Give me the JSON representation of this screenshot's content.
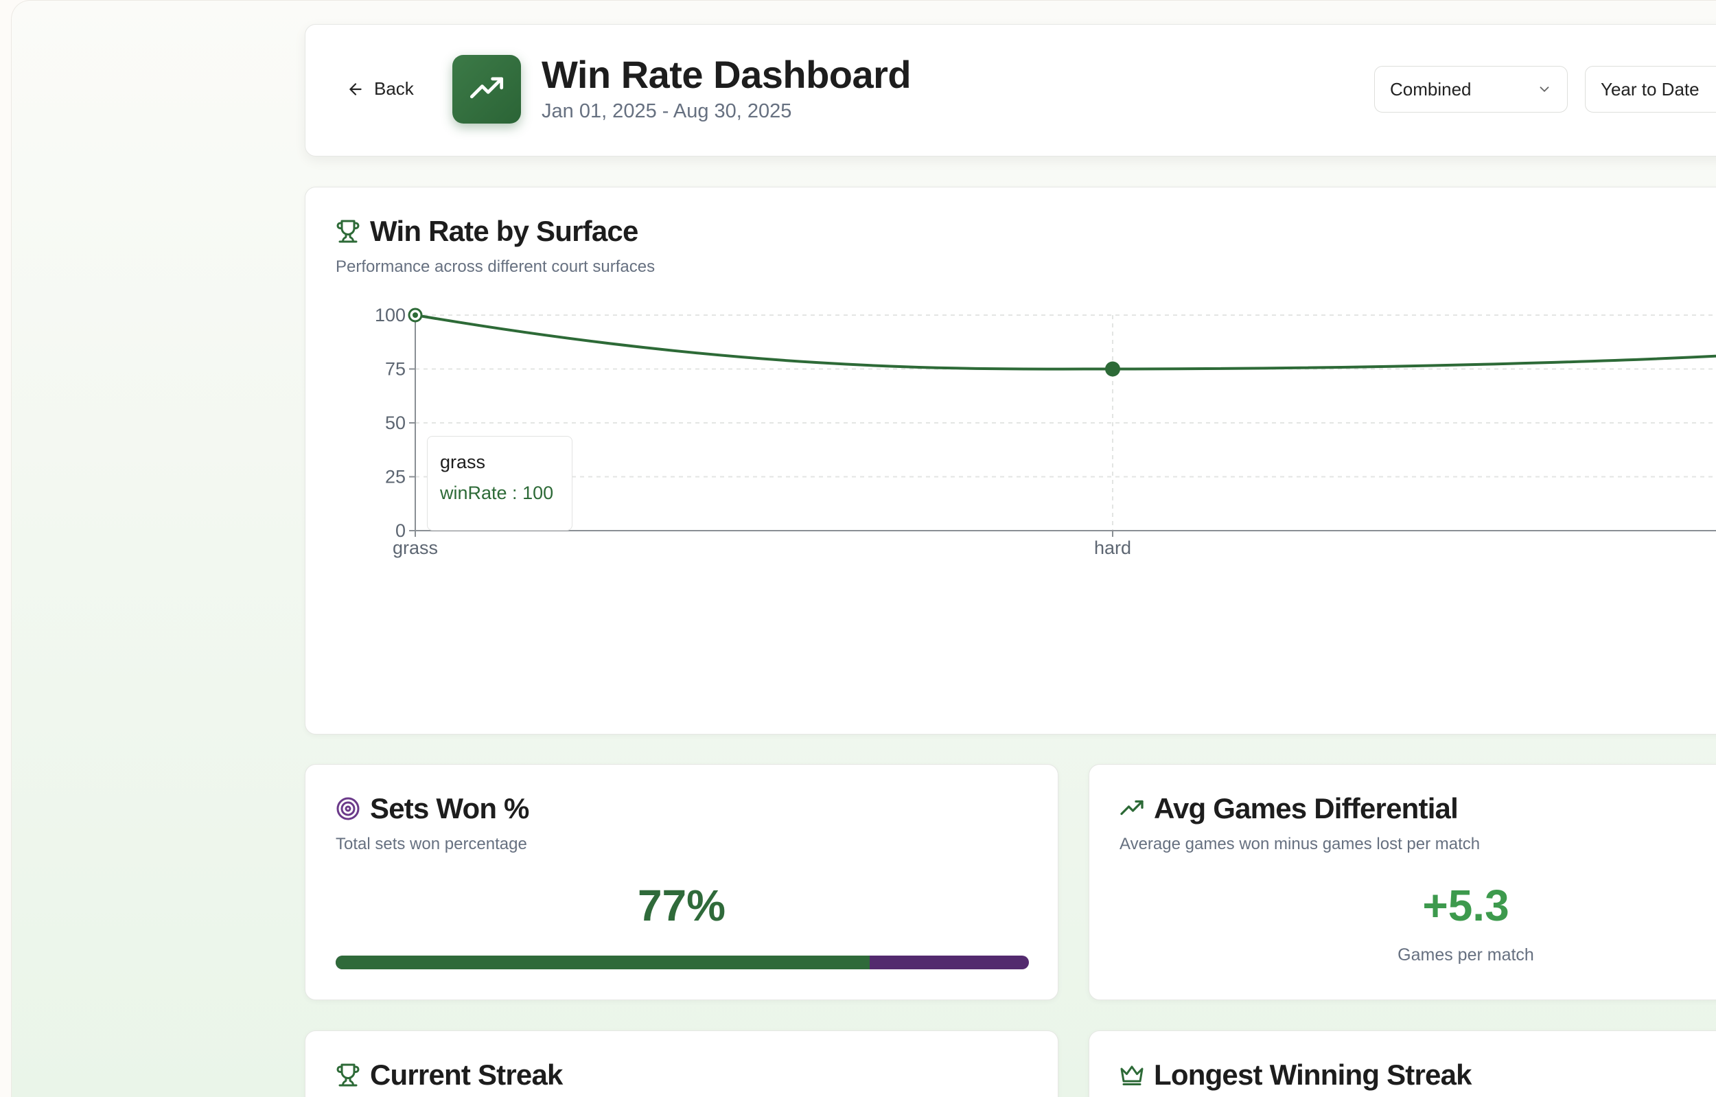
{
  "header": {
    "back_label": "Back",
    "title": "Win Rate Dashboard",
    "date_range": "Jan 01, 2025 - Aug 30, 2025",
    "filter_mode": "Combined",
    "period": "Year to Date"
  },
  "surface_chart": {
    "title": "Win Rate by Surface",
    "subtitle": "Performance across different court surfaces",
    "tooltip": {
      "label": "grass",
      "series": "winRate",
      "separator": " : ",
      "value": "100"
    }
  },
  "chart_data": {
    "type": "line",
    "categories": [
      "grass",
      "hard"
    ],
    "series": [
      {
        "values": [
          100,
          75
        ]
      }
    ],
    "continues_right": true,
    "ylim": [
      0,
      100
    ],
    "yticks": [
      "0",
      "25",
      "50",
      "75",
      "100"
    ],
    "grid": true,
    "colors": {
      "line": "#2d6a37",
      "grid": "#e3e5e3",
      "axis": "#8a8f94",
      "tick": "#5d6672"
    }
  },
  "sets_won": {
    "title": "Sets Won %",
    "subtitle": "Total sets won percentage",
    "value": "77%",
    "fraction": 0.77
  },
  "games_diff": {
    "title": "Avg Games Differential",
    "subtitle": "Average games won minus games lost per match",
    "value": "+5.3",
    "caption": "Games per match"
  },
  "current_streak": {
    "title": "Current Streak"
  },
  "longest_streak": {
    "title": "Longest Winning Streak"
  },
  "colors": {
    "accent": "#2d6a37",
    "accent_light": "#3d9a4d",
    "purple": "#532a6e",
    "muted": "#667080"
  },
  "icons": {
    "back": "arrow-left-icon",
    "logo": "trending-up-icon",
    "select_chevron": "chevron-down-icon",
    "surface": "trophy-icon",
    "sets": "target-icon",
    "diff": "trending-up-icon",
    "streak": "trophy-icon",
    "longest": "crown-icon"
  }
}
